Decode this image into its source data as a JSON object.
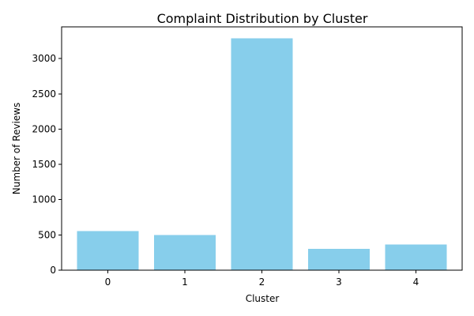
{
  "chart_data": {
    "type": "bar",
    "title": "Complaint Distribution by Cluster",
    "xlabel": "Cluster",
    "ylabel": "Number of Reviews",
    "categories": [
      "0",
      "1",
      "2",
      "3",
      "4"
    ],
    "values": [
      555,
      500,
      3290,
      305,
      365
    ],
    "ylim": [
      0,
      3450
    ],
    "yticks": [
      0,
      500,
      1000,
      1500,
      2000,
      2500,
      3000
    ],
    "grid": false,
    "legend": "none",
    "bar_color": "#87CEEB"
  }
}
